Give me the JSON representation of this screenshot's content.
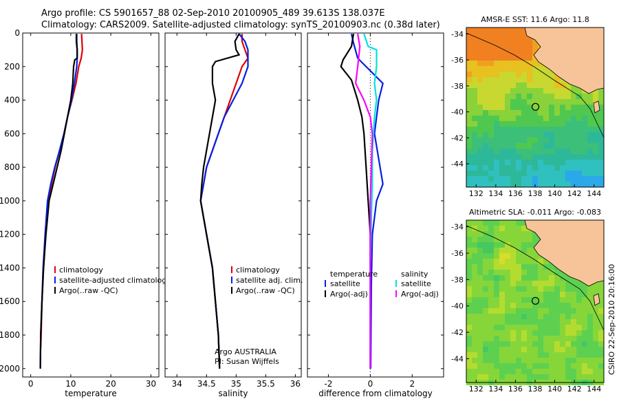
{
  "header": {
    "line1": "Argo profile: CS 5901657_88 02-Sep-2010 20100905_489 39.613S 138.037E",
    "line2": "Climatology: CARS2009. Satellite-adjusted climatology: synTS_20100903.nc (0.38d later)"
  },
  "colors": {
    "climatology": "#e00000",
    "satellite": "#0020e0",
    "argo": "#000000",
    "magenta": "#ff00ff",
    "cyan": "#00e0e0"
  },
  "chart_data": [
    {
      "type": "line",
      "id": "temperature",
      "xlabel": "temperature",
      "xlim": [
        -2,
        32
      ],
      "ylim": [
        2050,
        0
      ],
      "xticks": [
        0,
        10,
        20,
        30
      ],
      "yticks": [
        0,
        200,
        400,
        600,
        800,
        1000,
        1200,
        1400,
        1600,
        1800,
        2000
      ],
      "legend": [
        "climatology",
        "satellite-adjusted climatology",
        "Argo(..raw -QC)"
      ],
      "series": [
        {
          "name": "climatology",
          "color": "#e00000",
          "points": [
            [
              12.7,
              5
            ],
            [
              12.8,
              50
            ],
            [
              12.9,
              100
            ],
            [
              12.6,
              150
            ],
            [
              12,
              200
            ],
            [
              11.3,
              300
            ],
            [
              10.3,
              400
            ],
            [
              9.2,
              500
            ],
            [
              8.3,
              600
            ],
            [
              7.2,
              700
            ],
            [
              6.1,
              800
            ],
            [
              5.2,
              900
            ],
            [
              4.3,
              1000
            ],
            [
              3.7,
              1200
            ],
            [
              3.2,
              1400
            ],
            [
              2.8,
              1600
            ],
            [
              2.6,
              1800
            ],
            [
              2.5,
              1880
            ]
          ]
        },
        {
          "name": "satellite-adjusted climatology",
          "color": "#0020e0",
          "points": [
            [
              11.5,
              5
            ],
            [
              11.5,
              50
            ],
            [
              11.6,
              100
            ],
            [
              11.6,
              150
            ],
            [
              11.5,
              200
            ],
            [
              10.9,
              300
            ],
            [
              10.2,
              400
            ],
            [
              9.2,
              500
            ],
            [
              8.3,
              600
            ],
            [
              7.2,
              700
            ],
            [
              6,
              800
            ],
            [
              5,
              900
            ],
            [
              4.2,
              1000
            ],
            [
              3.6,
              1200
            ],
            [
              3.1,
              1400
            ],
            [
              2.8,
              1600
            ],
            [
              2.5,
              1800
            ],
            [
              2.4,
              2000
            ]
          ]
        },
        {
          "name": "Argo(..raw -QC)",
          "color": "#000000",
          "points": [
            [
              11.4,
              5
            ],
            [
              11.4,
              50
            ],
            [
              11.6,
              100
            ],
            [
              11.6,
              150
            ],
            [
              11,
              160
            ],
            [
              10.7,
              200
            ],
            [
              10.5,
              300
            ],
            [
              10,
              400
            ],
            [
              9.2,
              500
            ],
            [
              8.4,
              600
            ],
            [
              7.6,
              700
            ],
            [
              6.6,
              800
            ],
            [
              5.6,
              900
            ],
            [
              4.6,
              1000
            ],
            [
              3.8,
              1200
            ],
            [
              3.2,
              1400
            ],
            [
              2.8,
              1600
            ],
            [
              2.5,
              1800
            ],
            [
              2.4,
              2000
            ]
          ]
        }
      ]
    },
    {
      "type": "line",
      "id": "salinity",
      "xlabel": "salinity",
      "xlim": [
        33.8,
        36.1
      ],
      "ylim": [
        2050,
        0
      ],
      "xticks": [
        34,
        34.5,
        35,
        35.5,
        36
      ],
      "yticks": [
        0,
        200,
        400,
        600,
        800,
        1000,
        1200,
        1400,
        1600,
        1800,
        2000
      ],
      "legend": [
        "climatology",
        "satellite adj. clim.",
        "Argo(..raw -QC)"
      ],
      "annotation": [
        "Argo AUSTRALIA",
        "PI: Susan Wijffels"
      ],
      "series": [
        {
          "name": "climatology",
          "color": "#e00000",
          "points": [
            [
              35.1,
              5
            ],
            [
              35.1,
              50
            ],
            [
              35.15,
              100
            ],
            [
              35.2,
              150
            ],
            [
              35.1,
              200
            ],
            [
              35.0,
              300
            ],
            [
              34.9,
              400
            ],
            [
              34.8,
              500
            ],
            [
              34.7,
              600
            ],
            [
              34.6,
              700
            ],
            [
              34.5,
              800
            ],
            [
              34.45,
              900
            ],
            [
              34.4,
              1000
            ],
            [
              34.5,
              1200
            ],
            [
              34.6,
              1400
            ],
            [
              34.65,
              1600
            ],
            [
              34.7,
              1800
            ],
            [
              34.72,
              2000
            ]
          ]
        },
        {
          "name": "satellite adj. clim.",
          "color": "#0020e0",
          "points": [
            [
              35.05,
              5
            ],
            [
              35.15,
              50
            ],
            [
              35.2,
              100
            ],
            [
              35.2,
              200
            ],
            [
              35.1,
              300
            ],
            [
              34.95,
              400
            ],
            [
              34.8,
              500
            ],
            [
              34.7,
              600
            ],
            [
              34.6,
              700
            ],
            [
              34.5,
              800
            ],
            [
              34.45,
              900
            ],
            [
              34.4,
              1000
            ],
            [
              34.5,
              1200
            ],
            [
              34.6,
              1400
            ],
            [
              34.65,
              1600
            ],
            [
              34.7,
              1800
            ],
            [
              34.72,
              2000
            ]
          ]
        },
        {
          "name": "Argo(..raw -QC)",
          "color": "#000000",
          "points": [
            [
              35.05,
              5
            ],
            [
              34.98,
              50
            ],
            [
              35.0,
              100
            ],
            [
              35.05,
              130
            ],
            [
              34.65,
              170
            ],
            [
              34.6,
              200
            ],
            [
              34.6,
              300
            ],
            [
              34.65,
              400
            ],
            [
              34.6,
              500
            ],
            [
              34.55,
              600
            ],
            [
              34.5,
              700
            ],
            [
              34.45,
              800
            ],
            [
              34.42,
              900
            ],
            [
              34.4,
              1000
            ],
            [
              34.5,
              1200
            ],
            [
              34.6,
              1400
            ],
            [
              34.65,
              1600
            ],
            [
              34.7,
              1800
            ],
            [
              34.72,
              2000
            ]
          ]
        }
      ]
    },
    {
      "type": "line",
      "id": "difference",
      "xlabel": "difference from climatology",
      "xlim": [
        -3,
        3.5
      ],
      "ylim": [
        2050,
        0
      ],
      "xticks": [
        -2,
        0,
        2
      ],
      "yticks": [
        0,
        200,
        400,
        600,
        800,
        1000,
        1200,
        1400,
        1600,
        1800,
        2000
      ],
      "legend": {
        "temperature_heading": "temperature",
        "salinity_heading": "salinity",
        "temperature": [
          "satellite",
          "Argo(-adj)"
        ],
        "salinity": [
          "satellite",
          "Argo(-adj)"
        ]
      },
      "series": [
        {
          "name": "temperature satellite",
          "color": "#0020e0",
          "points": [
            [
              -0.9,
              5
            ],
            [
              -0.8,
              60
            ],
            [
              -0.6,
              150
            ],
            [
              0.2,
              250
            ],
            [
              0.6,
              300
            ],
            [
              0.4,
              400
            ],
            [
              0.3,
              500
            ],
            [
              0.2,
              600
            ],
            [
              0.4,
              750
            ],
            [
              0.6,
              900
            ],
            [
              0.3,
              1000
            ],
            [
              0.1,
              1200
            ],
            [
              0.05,
              1500
            ],
            [
              0.02,
              2000
            ]
          ]
        },
        {
          "name": "temperature Argo(-adj)",
          "color": "#000000",
          "points": [
            [
              -0.8,
              5
            ],
            [
              -0.9,
              80
            ],
            [
              -1.3,
              160
            ],
            [
              -1.4,
              200
            ],
            [
              -0.9,
              280
            ],
            [
              -0.6,
              400
            ],
            [
              -0.4,
              500
            ],
            [
              -0.3,
              600
            ],
            [
              -0.2,
              800
            ],
            [
              -0.1,
              1000
            ],
            [
              0,
              1200
            ],
            [
              0,
              1600
            ],
            [
              0,
              2000
            ]
          ]
        },
        {
          "name": "salinity satellite",
          "color": "#00e0e0",
          "points": [
            [
              -0.3,
              5
            ],
            [
              -0.1,
              80
            ],
            [
              0.3,
              100
            ],
            [
              0.3,
              200
            ],
            [
              0.2,
              300
            ],
            [
              0.3,
              400
            ],
            [
              0.2,
              500
            ],
            [
              0.1,
              700
            ],
            [
              0.1,
              900
            ],
            [
              0.05,
              1100
            ],
            [
              0,
              1400
            ],
            [
              0,
              2000
            ]
          ]
        },
        {
          "name": "salinity Argo(-adj)",
          "color": "#ff00ff",
          "points": [
            [
              -0.6,
              5
            ],
            [
              -0.5,
              80
            ],
            [
              -0.6,
              200
            ],
            [
              -0.7,
              300
            ],
            [
              -0.3,
              400
            ],
            [
              0,
              500
            ],
            [
              0.1,
              600
            ],
            [
              0.05,
              800
            ],
            [
              0,
              1000
            ],
            [
              0,
              2000
            ]
          ]
        }
      ]
    }
  ],
  "maps": [
    {
      "title": "AMSR-E SST: 11.6 Argo: 11.8",
      "xticks": [
        "132",
        "134",
        "136",
        "138",
        "140",
        "142",
        "144"
      ],
      "yticks": [
        "-34",
        "-36",
        "-38",
        "-40",
        "-42",
        "-44"
      ],
      "marker": {
        "lon": 138.037,
        "lat": -39.613
      }
    },
    {
      "title": "Altimetric SLA: -0.011 Argo: -0.083",
      "xticks": [
        "132",
        "134",
        "136",
        "138",
        "140",
        "142",
        "144"
      ],
      "yticks": [
        "-34",
        "-36",
        "-38",
        "-40",
        "-42",
        "-44"
      ],
      "marker": {
        "lon": 138.037,
        "lat": -39.613
      }
    }
  ],
  "credit": "CSIRO 22-Sep-2010 20:16:00"
}
